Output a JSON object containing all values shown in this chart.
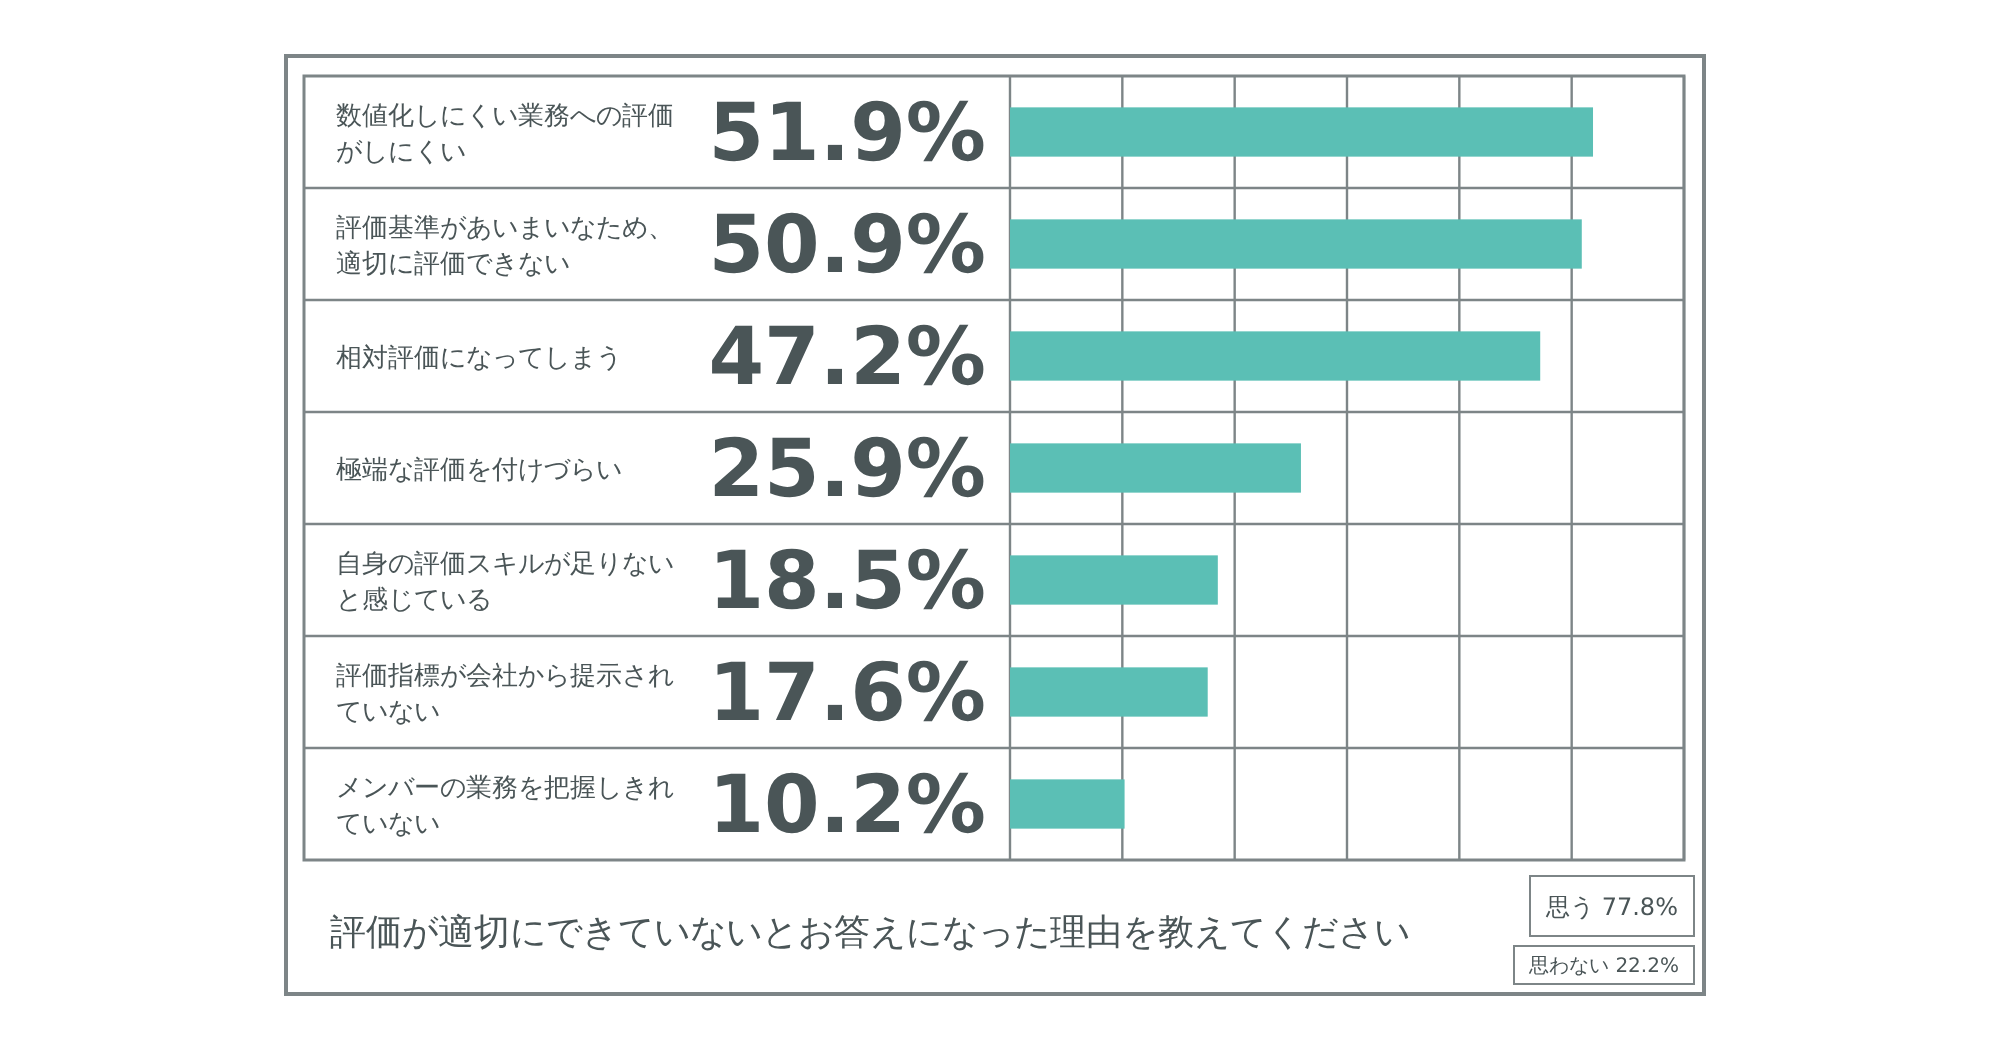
{
  "chart_data": {
    "type": "bar",
    "orientation": "horizontal",
    "title": "評価が適切にできていないとお答えになった理由を教えてください",
    "categories": [
      "数値化しにくい業務への評価がしにくい",
      "評価基準があいまいなため、適切に評価できない",
      "相対評価になってしまう",
      "極端な評価を付けづらい",
      "自身の評価スキルが足りないと感じている",
      "評価指標が会社から提示されていない",
      "メンバーの業務を把握しきれていない"
    ],
    "values": [
      51.9,
      50.9,
      47.2,
      25.9,
      18.5,
      17.6,
      10.2
    ],
    "colors": [
      "#5bbfb5",
      "#5bbfb5",
      "#5bbfb5",
      "#5bbfb5",
      "#5bbfb5",
      "#5bbfb5",
      "#5bbfb5"
    ],
    "value_labels": [
      "51.9%",
      "50.9%",
      "47.2%",
      "25.9%",
      "18.5%",
      "17.6%",
      "10.2%"
    ],
    "xlim": [
      0,
      60
    ],
    "xticks": [
      {
        "value": 0,
        "label": null
      },
      {
        "value": 10,
        "label": null
      },
      {
        "value": 20,
        "label": null
      },
      {
        "value": 30,
        "label": null
      },
      {
        "value": 40,
        "label": null
      },
      {
        "value": 50,
        "label": null
      },
      {
        "value": 60,
        "label": null
      }
    ],
    "grid": "x",
    "annotations": [
      "思う 77.8%",
      "思わない 22.2%"
    ]
  }
}
